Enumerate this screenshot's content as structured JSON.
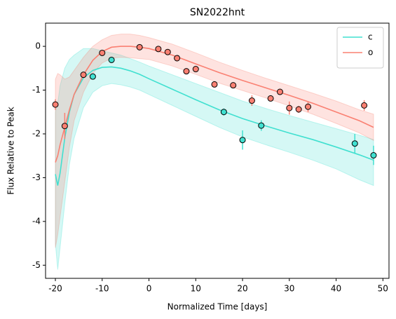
{
  "chart_data": {
    "type": "line",
    "title": "SN2022hnt",
    "x_label": "Normalized Time [days]",
    "y_label": "Flux Relative to Peak",
    "xlim": [
      -22.1,
      51.3
    ],
    "ylim": [
      -5.3,
      0.53
    ],
    "xticks": [
      -20,
      -10,
      0,
      10,
      20,
      30,
      40,
      50
    ],
    "yticks": [
      -5,
      -4,
      -3,
      -2,
      -1,
      0
    ],
    "legend": "upper right",
    "series": [
      {
        "name": "c",
        "color": "#40e0d0",
        "x": [
          -20,
          -19.5,
          -19,
          -18,
          -17,
          -16,
          -14,
          -12,
          -10,
          -8,
          -6,
          -4,
          -2,
          0,
          5,
          10,
          15,
          20,
          25,
          30,
          35,
          40,
          45,
          48
        ],
        "values": [
          -2.92,
          -3.18,
          -2.9,
          -2.1,
          -1.5,
          -1.1,
          -0.72,
          -0.55,
          -0.48,
          -0.47,
          -0.5,
          -0.56,
          -0.64,
          -0.74,
          -0.98,
          -1.22,
          -1.45,
          -1.65,
          -1.82,
          -1.98,
          -2.13,
          -2.3,
          -2.48,
          -2.6
        ],
        "upper": [
          -1.5,
          -1.3,
          -0.9,
          -0.5,
          -0.3,
          -0.2,
          -0.05,
          -0.05,
          -0.1,
          -0.15,
          -0.2,
          -0.28,
          -0.36,
          -0.45,
          -0.65,
          -0.85,
          -1.05,
          -1.25,
          -1.42,
          -1.58,
          -1.73,
          -1.88,
          -2.03,
          -2.13
        ],
        "lower": [
          -4.5,
          -5.1,
          -4.6,
          -3.6,
          -2.7,
          -2.1,
          -1.4,
          -1.05,
          -0.9,
          -0.85,
          -0.88,
          -0.93,
          -1.0,
          -1.1,
          -1.35,
          -1.6,
          -1.85,
          -2.07,
          -2.25,
          -2.42,
          -2.6,
          -2.8,
          -3.05,
          -3.18
        ],
        "obs_x": [
          -12,
          -8,
          16,
          20,
          24,
          44,
          48
        ],
        "obs_values": [
          -0.69,
          -0.31,
          -1.5,
          -2.14,
          -1.81,
          -2.22,
          -2.49
        ],
        "obs_errors": [
          0.05,
          0.05,
          0.08,
          0.22,
          0.12,
          0.22,
          0.22
        ]
      },
      {
        "name": "o",
        "color": "#fa8072",
        "x": [
          -20,
          -19.5,
          -19,
          -18,
          -17,
          -16,
          -14,
          -12,
          -10,
          -8,
          -6,
          -4,
          -2,
          0,
          5,
          10,
          15,
          20,
          25,
          30,
          35,
          40,
          45,
          48
        ],
        "values": [
          -2.65,
          -2.5,
          -2.25,
          -1.85,
          -1.45,
          -1.1,
          -0.65,
          -0.32,
          -0.12,
          -0.02,
          0.0,
          0.0,
          -0.02,
          -0.05,
          -0.2,
          -0.4,
          -0.6,
          -0.78,
          -0.95,
          -1.12,
          -1.3,
          -1.5,
          -1.7,
          -1.85
        ],
        "upper": [
          -0.75,
          -0.62,
          -0.65,
          -0.75,
          -0.7,
          -0.55,
          -0.25,
          0.0,
          0.15,
          0.25,
          0.28,
          0.28,
          0.25,
          0.2,
          0.05,
          -0.15,
          -0.36,
          -0.55,
          -0.73,
          -0.9,
          -1.07,
          -1.25,
          -1.45,
          -1.55
        ],
        "lower": [
          -4.6,
          -4.3,
          -3.9,
          -3.1,
          -2.3,
          -1.7,
          -1.05,
          -0.62,
          -0.38,
          -0.27,
          -0.25,
          -0.26,
          -0.28,
          -0.3,
          -0.45,
          -0.64,
          -0.84,
          -1.01,
          -1.18,
          -1.36,
          -1.55,
          -1.76,
          -1.98,
          -2.15
        ],
        "obs_x": [
          -20,
          -18,
          -14,
          -10,
          -2,
          2,
          4,
          6,
          8,
          10,
          14,
          18,
          22,
          26,
          28,
          30,
          32,
          34,
          46
        ],
        "obs_values": [
          -1.33,
          -1.82,
          -0.65,
          -0.15,
          -0.02,
          -0.06,
          -0.13,
          -0.27,
          -0.57,
          -0.52,
          -0.87,
          -0.89,
          -1.24,
          -1.19,
          -1.04,
          -1.41,
          -1.44,
          -1.38,
          -1.35
        ],
        "obs_errors": [
          0.12,
          0.3,
          0.05,
          0.05,
          0.05,
          0.05,
          0.05,
          0.05,
          0.05,
          0.05,
          0.05,
          0.05,
          0.12,
          0.05,
          0.05,
          0.15,
          0.08,
          0.12,
          0.12
        ]
      }
    ]
  }
}
